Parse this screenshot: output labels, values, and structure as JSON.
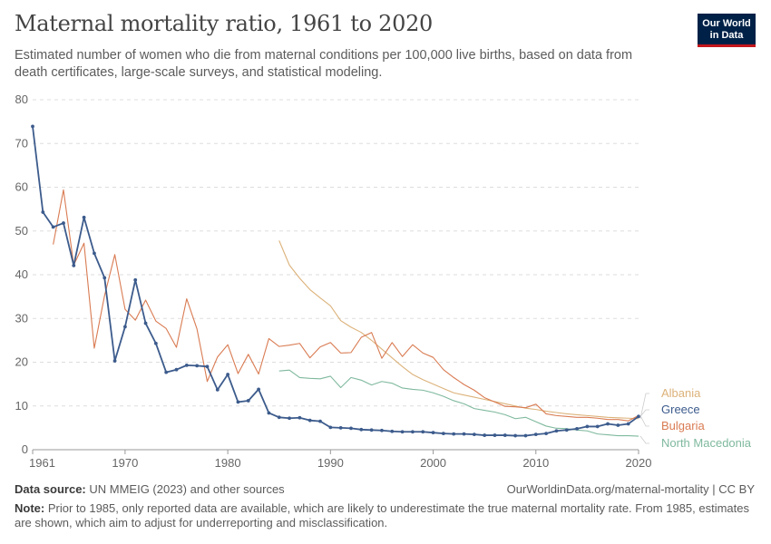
{
  "header": {
    "title": "Maternal mortality ratio, 1961 to 2020",
    "subtitle": "Estimated number of women who die from maternal conditions per 100,000 live births, based on data from death certificates, large-scale surveys, and statistical modeling.",
    "logo_line1": "Our World",
    "logo_line2": "in Data"
  },
  "footer": {
    "source_label": "Data source:",
    "source_text": " UN MMEIG (2023) and other sources",
    "url": "OurWorldinData.org/maternal-mortality | CC BY",
    "note_label": "Note:",
    "note_text": " Prior to 1985, only reported data are available, which are likely to underestimate the true maternal mortality rate. From 1985, estimates are shown, which aim to adjust for underreporting and misclassification."
  },
  "chart_data": {
    "type": "line",
    "title": "Maternal mortality ratio, 1961 to 2020",
    "xlim": [
      1961,
      2020
    ],
    "ylim": [
      0,
      80
    ],
    "x_ticks": [
      "1961",
      "1970",
      "1980",
      "1990",
      "2000",
      "2010",
      "2020"
    ],
    "y_ticks": [
      "0",
      "10",
      "20",
      "30",
      "40",
      "50",
      "60",
      "70",
      "80"
    ],
    "grid": true,
    "legend_position": "right",
    "series": [
      {
        "name": "Albania",
        "color": "#dcb27a",
        "markers": false,
        "x": [
          1985,
          1986,
          1987,
          1988,
          1989,
          1990,
          1991,
          1992,
          1993,
          1994,
          1995,
          1996,
          1997,
          1998,
          1999,
          2000,
          2001,
          2002,
          2003,
          2004,
          2005,
          2006,
          2007,
          2008,
          2009,
          2010,
          2011,
          2012,
          2013,
          2014,
          2015,
          2016,
          2017,
          2018,
          2019,
          2020
        ],
        "values": [
          47.8,
          42.2,
          39.2,
          36.6,
          34.7,
          32.9,
          29.5,
          28,
          26.8,
          25,
          23,
          21,
          19,
          17.2,
          16,
          15,
          14,
          13,
          12.5,
          12,
          11.5,
          11,
          10.5,
          10,
          9.5,
          9.2,
          8.8,
          8.5,
          8.2,
          8,
          7.8,
          7.6,
          7.4,
          7.3,
          7.2,
          7.1
        ]
      },
      {
        "name": "Greece",
        "color": "#3c5b8c",
        "markers": true,
        "x": [
          1961,
          1962,
          1963,
          1964,
          1965,
          1966,
          1967,
          1968,
          1969,
          1970,
          1971,
          1972,
          1973,
          1974,
          1975,
          1976,
          1977,
          1978,
          1979,
          1980,
          1981,
          1982,
          1983,
          1984,
          1985,
          1986,
          1987,
          1988,
          1989,
          1990,
          1991,
          1992,
          1993,
          1994,
          1995,
          1996,
          1997,
          1998,
          1999,
          2000,
          2001,
          2002,
          2003,
          2004,
          2005,
          2006,
          2007,
          2008,
          2009,
          2010,
          2011,
          2012,
          2013,
          2014,
          2015,
          2016,
          2017,
          2018,
          2019,
          2020
        ],
        "values": [
          73.9,
          54.3,
          50.9,
          51.8,
          42.1,
          53.1,
          44.9,
          39.3,
          20.3,
          28.1,
          38.8,
          28.9,
          24.3,
          17.7,
          18.3,
          19.3,
          19.2,
          19,
          13.7,
          17.2,
          10.9,
          11.2,
          13.8,
          8.4,
          7.4,
          7.2,
          7.3,
          6.7,
          6.5,
          5.1,
          5,
          4.9,
          4.6,
          4.5,
          4.4,
          4.2,
          4.1,
          4.1,
          4.1,
          3.9,
          3.7,
          3.6,
          3.6,
          3.5,
          3.3,
          3.3,
          3.3,
          3.2,
          3.2,
          3.5,
          3.7,
          4.3,
          4.5,
          4.8,
          5.3,
          5.3,
          5.9,
          5.6,
          5.9,
          7.6
        ]
      },
      {
        "name": "Bulgaria",
        "color": "#d97b52",
        "markers": false,
        "x": [
          1963,
          1964,
          1965,
          1966,
          1967,
          1968,
          1969,
          1970,
          1971,
          1972,
          1973,
          1974,
          1975,
          1976,
          1977,
          1978,
          1979,
          1980,
          1981,
          1982,
          1983,
          1984,
          1985,
          1986,
          1987,
          1988,
          1989,
          1990,
          1991,
          1992,
          1993,
          1994,
          1995,
          1996,
          1997,
          1998,
          1999,
          2000,
          2001,
          2002,
          2003,
          2004,
          2005,
          2006,
          2007,
          2008,
          2009,
          2010,
          2011,
          2012,
          2013,
          2014,
          2015,
          2016,
          2017,
          2018,
          2019,
          2020
        ],
        "values": [
          46.9,
          59.4,
          42.2,
          47.2,
          23.2,
          35.2,
          44.6,
          32.1,
          29.6,
          34.2,
          29.4,
          27.7,
          23.4,
          34.5,
          27.6,
          15.6,
          21.2,
          24,
          17.4,
          21.8,
          17.3,
          25.4,
          23.6,
          23.9,
          24.3,
          21,
          23.5,
          24.5,
          22.1,
          22.2,
          25.7,
          26.8,
          20.9,
          24.5,
          21.3,
          24,
          22.1,
          21.1,
          18.3,
          16.5,
          14.9,
          13.6,
          11.9,
          10.9,
          9.9,
          9.8,
          9.6,
          10.4,
          8.2,
          7.8,
          7.6,
          7.4,
          7.4,
          7.2,
          6.9,
          6.9,
          6.6,
          7.8
        ]
      },
      {
        "name": "North Macedonia",
        "color": "#7fb99e",
        "markers": false,
        "x": [
          1985,
          1986,
          1987,
          1988,
          1989,
          1990,
          1991,
          1992,
          1993,
          1994,
          1995,
          1996,
          1997,
          1998,
          1999,
          2000,
          2001,
          2002,
          2003,
          2004,
          2005,
          2006,
          2007,
          2008,
          2009,
          2010,
          2011,
          2012,
          2013,
          2014,
          2015,
          2016,
          2017,
          2018,
          2019,
          2020
        ],
        "values": [
          18,
          18.2,
          16.5,
          16.3,
          16.2,
          16.8,
          14.2,
          16.5,
          15.9,
          14.8,
          15.6,
          15.2,
          14.1,
          13.8,
          13.6,
          13,
          12.2,
          11.2,
          10.5,
          9.4,
          9,
          8.6,
          8,
          7.1,
          7.4,
          6.4,
          5.4,
          4.9,
          4.8,
          4.5,
          4.3,
          3.6,
          3.4,
          3.2,
          3.2,
          3.1
        ]
      }
    ]
  }
}
